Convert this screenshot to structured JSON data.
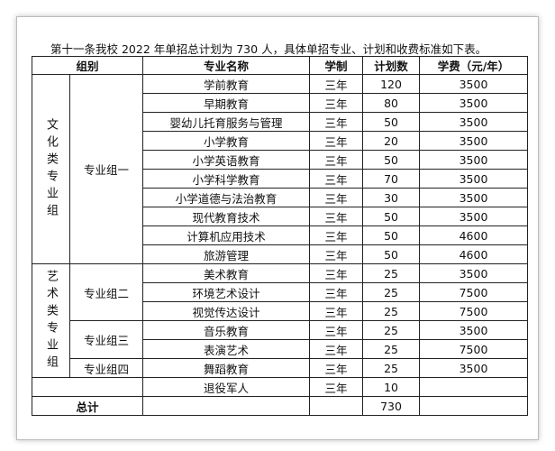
{
  "intro": "第十一条我校 2022 年单招总计划为 730 人，具体单招专业、计划和收费标准如下表。",
  "table": {
    "header": [
      "组别",
      "专业名称",
      "学制",
      "计划数",
      "学费（元/年）"
    ],
    "groups": [
      {
        "category": "文化类专业组",
        "subgroups": [
          {
            "name": "专业组一",
            "rows": [
              [
                "学前教育",
                "三年",
                120,
                3500
              ],
              [
                "早期教育",
                "三年",
                80,
                3500
              ],
              [
                "婴幼儿托育服务与管理",
                "三年",
                50,
                3500
              ],
              [
                "小学教育",
                "三年",
                20,
                3500
              ],
              [
                "小学英语教育",
                "三年",
                50,
                3500
              ],
              [
                "小学科学教育",
                "三年",
                70,
                3500
              ],
              [
                "小学道德与法治教育",
                "三年",
                30,
                3500
              ],
              [
                "现代教育技术",
                "三年",
                50,
                3500
              ],
              [
                "计算机应用技术",
                "三年",
                50,
                4600
              ],
              [
                "旅游管理",
                "三年",
                50,
                4600
              ]
            ]
          }
        ]
      },
      {
        "category": "艺术类专业组",
        "subgroups": [
          {
            "name": "专业组二",
            "rows": [
              [
                "美术教育",
                "三年",
                25,
                3500
              ],
              [
                "环境艺术设计",
                "三年",
                25,
                7500
              ],
              [
                "视觉传达设计",
                "三年",
                25,
                7500
              ]
            ]
          },
          {
            "name": "专业组三",
            "rows": [
              [
                "音乐教育",
                "三年",
                25,
                3500
              ],
              [
                "表演艺术",
                "三年",
                25,
                7500
              ]
            ]
          },
          {
            "name": "专业组四",
            "rows": [
              [
                "舞蹈教育",
                "三年",
                25,
                3500
              ]
            ]
          }
        ]
      }
    ],
    "veteran": [
      "退役军人",
      "三年",
      10
    ],
    "total": {
      "label": "总计",
      "count": 730
    }
  }
}
